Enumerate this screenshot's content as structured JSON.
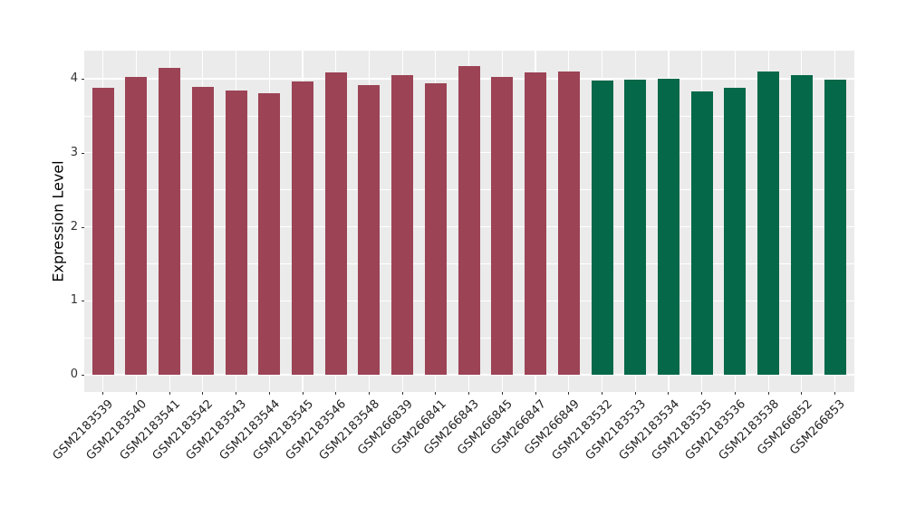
{
  "chart_data": {
    "type": "bar",
    "title": "",
    "xlabel": "",
    "ylabel": "Expression Level",
    "yticks": [
      0,
      1,
      2,
      3,
      4
    ],
    "ylim": [
      0,
      4.39
    ],
    "grid": true,
    "legend_position": "none",
    "categories": [
      "GSM2183539",
      "GSM2183540",
      "GSM2183541",
      "GSM2183542",
      "GSM2183543",
      "GSM2183544",
      "GSM2183545",
      "GSM2183546",
      "GSM2183548",
      "GSM266839",
      "GSM266841",
      "GSM266843",
      "GSM266845",
      "GSM266847",
      "GSM266849",
      "GSM2183532",
      "GSM2183533",
      "GSM2183534",
      "GSM2183535",
      "GSM2183536",
      "GSM2183538",
      "GSM266852",
      "GSM266853"
    ],
    "values": [
      3.88,
      4.02,
      4.15,
      3.89,
      3.84,
      3.8,
      3.96,
      4.08,
      3.92,
      4.05,
      3.94,
      4.17,
      4.02,
      4.08,
      4.1,
      3.97,
      3.99,
      4.0,
      3.83,
      3.88,
      4.1,
      4.05,
      3.99
    ],
    "colors": [
      "#9C4355",
      "#9C4355",
      "#9C4355",
      "#9C4355",
      "#9C4355",
      "#9C4355",
      "#9C4355",
      "#9C4355",
      "#9C4355",
      "#9C4355",
      "#9C4355",
      "#9C4355",
      "#9C4355",
      "#9C4355",
      "#9C4355",
      "#056849",
      "#056849",
      "#056849",
      "#056849",
      "#056849",
      "#056849",
      "#056849",
      "#056849"
    ]
  },
  "style": {
    "panel_background": "#EBEBEB",
    "gridline_color": "#FFFFFF",
    "bar_color_group_a": "#9C4355",
    "bar_color_group_b": "#056849",
    "axis_text_color": "#333333",
    "axis_title_color": "#000000"
  }
}
